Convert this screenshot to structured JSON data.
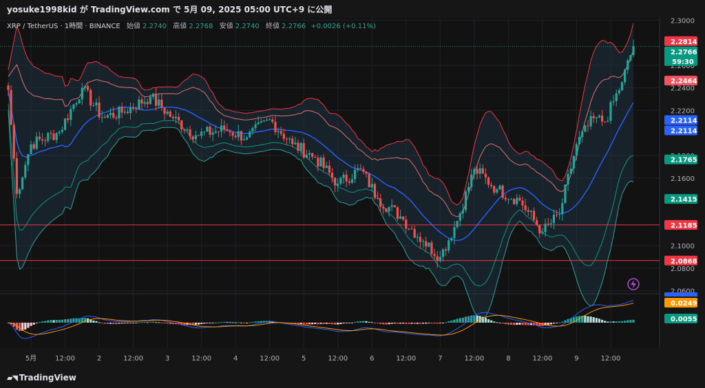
{
  "header": {
    "publish_line": "yosuke1998kid が TradingView.com で 5月 09, 2025 05:00 UTC+9 に公開"
  },
  "legend": {
    "symbol": "XRP / TetherUS · 1時間 · BINANCE",
    "open_label": "始値",
    "open": "2.2740",
    "high_label": "高値",
    "high": "2.2768",
    "low_label": "安値",
    "low": "2.2740",
    "close_label": "終値",
    "close": "2.2766",
    "change": "+0.0026 (+0.11%)"
  },
  "footer": {
    "brand": "TradingView"
  },
  "colors": {
    "up": "#26a69a",
    "down": "#ef5350",
    "band_outer": "#f23645",
    "band_mid_line": "#2962ff",
    "band_inner": "#089981",
    "hline": "#f23645",
    "macd": "#2962ff",
    "signal": "#ff9800"
  },
  "chart_data": {
    "type": "candlestick",
    "price_axis": {
      "ticks": [
        "2.3000",
        "2.2600",
        "2.2400",
        "2.2200",
        "2.1800",
        "2.1600",
        "2.1000",
        "2.0800",
        "2.0600"
      ],
      "tick_values": [
        2.3,
        2.26,
        2.24,
        2.22,
        2.18,
        2.16,
        2.1,
        2.08,
        2.06
      ],
      "range": [
        2.058,
        2.302
      ]
    },
    "time_axis": {
      "labels": [
        "5月",
        "12:00",
        "2",
        "12:00",
        "3",
        "12:00",
        "4",
        "12:00",
        "5",
        "12:00",
        "6",
        "12:00",
        "7",
        "12:00",
        "8",
        "12:00",
        "9",
        "12:00"
      ]
    },
    "price_badges": [
      {
        "value": 2.2814,
        "label": "2.2814",
        "color": "#f23645"
      },
      {
        "value": 2.2766,
        "label": "2.2766",
        "sub": "59:30",
        "color": "#089981"
      },
      {
        "value": 2.2464,
        "label": "2.2464",
        "color": "#f7525f"
      },
      {
        "value": 2.2114,
        "label": "2.2114",
        "color": "#2962ff"
      },
      {
        "value": 2.2114,
        "label": "2.2114",
        "color": "#2962ff"
      },
      {
        "value": 2.1765,
        "label": "2.1765",
        "color": "#089981"
      },
      {
        "value": 2.1415,
        "label": "2.1415",
        "color": "#089981"
      },
      {
        "value": 2.1185,
        "label": "2.1185",
        "color": "#f23645"
      },
      {
        "value": 2.0868,
        "label": "2.0868",
        "color": "#f23645"
      }
    ],
    "horizontal_lines": [
      2.1185,
      2.0868
    ],
    "close_anchors": [
      {
        "bar": 0,
        "close": 2.238
      },
      {
        "bar": 3,
        "close": 2.146
      },
      {
        "bar": 8,
        "close": 2.19
      },
      {
        "bar": 18,
        "close": 2.201
      },
      {
        "bar": 26,
        "close": 2.24
      },
      {
        "bar": 33,
        "close": 2.214
      },
      {
        "bar": 40,
        "close": 2.218
      },
      {
        "bar": 50,
        "close": 2.232
      },
      {
        "bar": 58,
        "close": 2.213
      },
      {
        "bar": 66,
        "close": 2.198
      },
      {
        "bar": 76,
        "close": 2.203
      },
      {
        "bar": 84,
        "close": 2.196
      },
      {
        "bar": 92,
        "close": 2.212
      },
      {
        "bar": 100,
        "close": 2.19
      },
      {
        "bar": 108,
        "close": 2.178
      },
      {
        "bar": 116,
        "close": 2.155
      },
      {
        "bar": 124,
        "close": 2.168
      },
      {
        "bar": 130,
        "close": 2.142
      },
      {
        "bar": 138,
        "close": 2.126
      },
      {
        "bar": 146,
        "close": 2.104
      },
      {
        "bar": 152,
        "close": 2.09
      },
      {
        "bar": 158,
        "close": 2.122
      },
      {
        "bar": 164,
        "close": 2.168
      },
      {
        "bar": 172,
        "close": 2.15
      },
      {
        "bar": 180,
        "close": 2.14
      },
      {
        "bar": 188,
        "close": 2.112
      },
      {
        "bar": 194,
        "close": 2.128
      },
      {
        "bar": 200,
        "close": 2.19
      },
      {
        "bar": 206,
        "close": 2.213
      },
      {
        "bar": 210,
        "close": 2.21
      },
      {
        "bar": 216,
        "close": 2.245
      },
      {
        "bar": 220,
        "close": 2.277
      }
    ],
    "macd_badges": [
      {
        "label": "0.0249",
        "color": "#ff9800"
      },
      {
        "label": "0.0055",
        "color": "#089981"
      }
    ]
  }
}
